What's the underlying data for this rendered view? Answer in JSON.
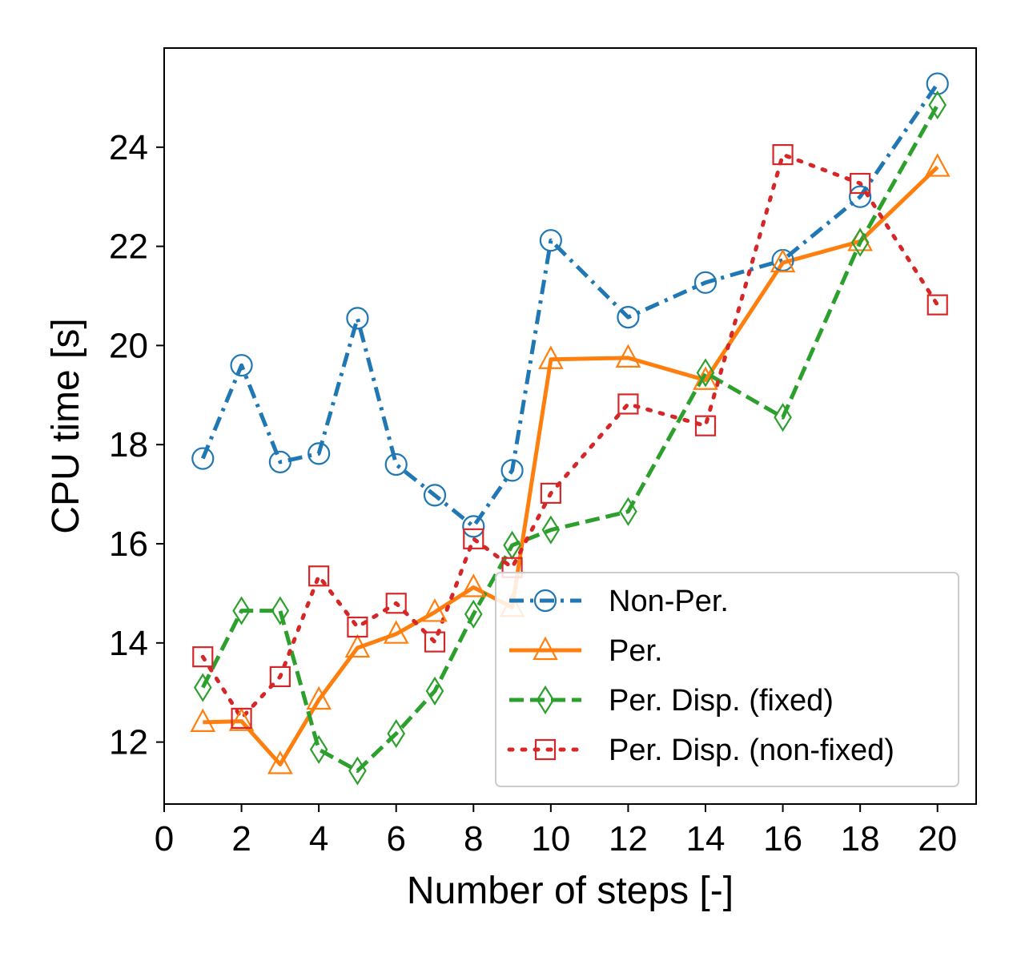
{
  "chart_data": {
    "type": "line",
    "title": "",
    "xlabel": "Number of steps [-]",
    "ylabel": "CPU time [s]",
    "xlim": [
      0,
      21
    ],
    "ylim": [
      10.75,
      26.0
    ],
    "xticks": [
      0,
      2,
      4,
      6,
      8,
      10,
      12,
      14,
      16,
      18,
      20
    ],
    "yticks": [
      12,
      14,
      16,
      18,
      20,
      22,
      24
    ],
    "grid": false,
    "legend": "lower-right",
    "x": [
      1,
      2,
      3,
      4,
      5,
      6,
      7,
      8,
      9,
      10,
      12,
      14,
      16,
      18,
      20
    ],
    "series": [
      {
        "name": "Non-Per.",
        "color": "#1f77b4",
        "line_style": "dashdot",
        "marker": "circle",
        "values": [
          17.72,
          19.6,
          17.65,
          17.82,
          20.55,
          17.6,
          16.98,
          16.35,
          17.48,
          22.12,
          20.57,
          21.27,
          21.72,
          23.0,
          25.28
        ]
      },
      {
        "name": "Per.",
        "color": "#ff7f0e",
        "line_style": "solid",
        "marker": "triangle",
        "values": [
          12.4,
          12.42,
          11.55,
          12.85,
          13.9,
          14.18,
          14.62,
          15.12,
          14.72,
          19.72,
          19.75,
          19.3,
          21.67,
          22.1,
          23.6
        ]
      },
      {
        "name": "Per. Disp. (fixed)",
        "color": "#2ca02c",
        "line_style": "dashed",
        "marker": "diamond",
        "values": [
          13.1,
          14.65,
          14.65,
          11.85,
          11.42,
          12.17,
          13.03,
          14.58,
          15.97,
          16.28,
          16.65,
          19.45,
          18.55,
          22.08,
          24.85
        ]
      },
      {
        "name": "Per. Disp. (non-fixed)",
        "color": "#d62728",
        "line_style": "dotted",
        "marker": "square",
        "values": [
          13.72,
          12.48,
          13.32,
          15.35,
          14.32,
          14.8,
          14.02,
          16.1,
          15.52,
          17.02,
          18.82,
          18.38,
          23.85,
          23.27,
          20.82
        ]
      }
    ]
  }
}
